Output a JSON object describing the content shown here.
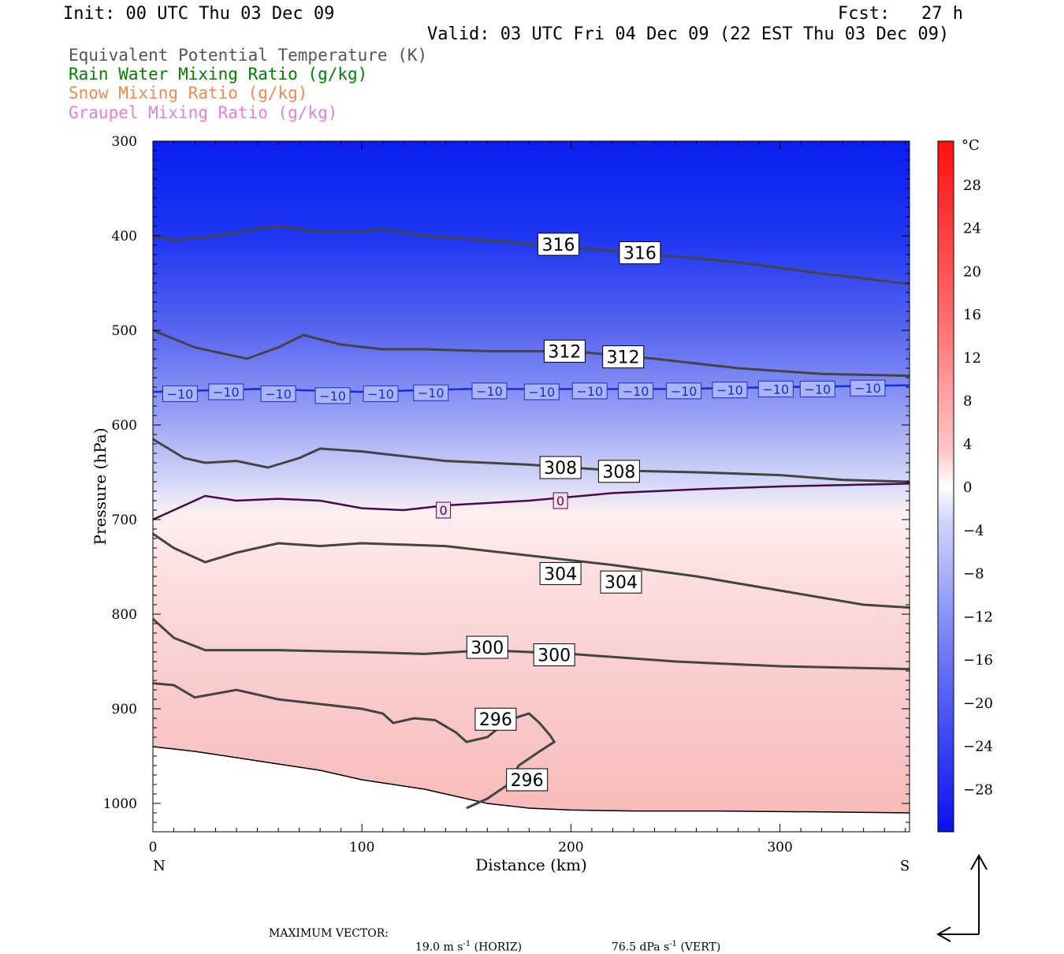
{
  "header": {
    "init": "Init: 00 UTC Thu 03 Dec 09",
    "fcst": "Fcst:   27 h",
    "valid": "Valid: 03 UTC Fri 04 Dec 09 (22 EST Thu 03 Dec 09)"
  },
  "legend": [
    {
      "label": "Equivalent Potential Temperature (K)",
      "color": "#555555"
    },
    {
      "label": "Rain Water Mixing Ratio (g/kg)",
      "color": "#008000"
    },
    {
      "label": "Snow Mixing Ratio (g/kg)",
      "color": "#f08a50"
    },
    {
      "label": "Graupel Mixing Ratio (g/kg)",
      "color": "#e080e0"
    }
  ],
  "footer": {
    "max_vector_label": "MAXIMUM VECTOR:",
    "horiz": "19.0 m s",
    "horiz_exp": "-1",
    "horiz_tag": "(HORIZ)",
    "vert": "76.5 dPa s",
    "vert_exp": "-1",
    "vert_tag": "(VERT)"
  },
  "chart_data": {
    "type": "cross-section",
    "xlabel": "Distance (km)",
    "ylabel": "Pressure (hPa)",
    "xlim": [
      0,
      362
    ],
    "ylim": [
      1030,
      300
    ],
    "x_ticks": [
      0,
      100,
      200,
      300
    ],
    "y_ticks": [
      300,
      400,
      500,
      600,
      700,
      800,
      900,
      1000
    ],
    "x_end_labels": {
      "left": "N",
      "right": "S"
    },
    "colorbar": {
      "unit": "°C",
      "range": [
        -32,
        32
      ],
      "labels": [
        28,
        24,
        20,
        16,
        12,
        8,
        4,
        0,
        -4,
        -8,
        -12,
        -16,
        -20,
        -24,
        -28
      ]
    },
    "theta_e_contours": [
      {
        "value": 316,
        "points": [
          [
            0,
            400
          ],
          [
            10,
            405
          ],
          [
            30,
            400
          ],
          [
            50,
            393
          ],
          [
            60,
            390
          ],
          [
            80,
            396
          ],
          [
            100,
            396
          ],
          [
            110,
            393
          ],
          [
            130,
            400
          ],
          [
            160,
            405
          ],
          [
            200,
            412
          ],
          [
            240,
            420
          ],
          [
            280,
            428
          ],
          [
            320,
            440
          ],
          [
            362,
            451
          ]
        ],
        "labels": [
          [
            194,
            409
          ],
          [
            233,
            418
          ]
        ]
      },
      {
        "value": 312,
        "points": [
          [
            0,
            500
          ],
          [
            20,
            518
          ],
          [
            45,
            530
          ],
          [
            60,
            518
          ],
          [
            72,
            505
          ],
          [
            90,
            515
          ],
          [
            110,
            520
          ],
          [
            130,
            520
          ],
          [
            160,
            522
          ],
          [
            200,
            522
          ],
          [
            240,
            530
          ],
          [
            280,
            540
          ],
          [
            320,
            546
          ],
          [
            362,
            548
          ]
        ],
        "labels": [
          [
            197,
            522
          ],
          [
            225,
            528
          ]
        ]
      },
      {
        "value": 308,
        "points": [
          [
            0,
            615
          ],
          [
            15,
            635
          ],
          [
            25,
            640
          ],
          [
            40,
            638
          ],
          [
            55,
            645
          ],
          [
            70,
            635
          ],
          [
            80,
            625
          ],
          [
            100,
            628
          ],
          [
            140,
            638
          ],
          [
            180,
            642
          ],
          [
            220,
            648
          ],
          [
            260,
            650
          ],
          [
            300,
            653
          ],
          [
            330,
            658
          ],
          [
            362,
            660
          ]
        ],
        "labels": [
          [
            195,
            645
          ],
          [
            223,
            649
          ]
        ]
      },
      {
        "value": 304,
        "points": [
          [
            0,
            715
          ],
          [
            10,
            730
          ],
          [
            25,
            745
          ],
          [
            40,
            735
          ],
          [
            60,
            725
          ],
          [
            80,
            728
          ],
          [
            100,
            725
          ],
          [
            140,
            728
          ],
          [
            180,
            738
          ],
          [
            220,
            748
          ],
          [
            260,
            760
          ],
          [
            300,
            775
          ],
          [
            340,
            790
          ],
          [
            362,
            793
          ]
        ],
        "labels": [
          [
            195,
            757
          ],
          [
            224,
            766
          ]
        ]
      },
      {
        "value": 300,
        "points": [
          [
            0,
            805
          ],
          [
            10,
            825
          ],
          [
            25,
            838
          ],
          [
            60,
            838
          ],
          [
            100,
            840
          ],
          [
            130,
            842
          ],
          [
            160,
            838
          ],
          [
            200,
            842
          ],
          [
            250,
            850
          ],
          [
            300,
            855
          ],
          [
            362,
            858
          ]
        ],
        "labels": [
          [
            160,
            835
          ],
          [
            192,
            843
          ]
        ]
      },
      {
        "value": 296,
        "points": [
          [
            0,
            873
          ],
          [
            10,
            875
          ],
          [
            20,
            888
          ],
          [
            40,
            880
          ],
          [
            60,
            890
          ],
          [
            80,
            895
          ],
          [
            100,
            900
          ],
          [
            110,
            905
          ],
          [
            115,
            915
          ],
          [
            125,
            910
          ],
          [
            135,
            912
          ],
          [
            145,
            925
          ],
          [
            150,
            935
          ],
          [
            160,
            930
          ],
          [
            170,
            912
          ],
          [
            180,
            905
          ],
          [
            185,
            915
          ],
          [
            190,
            928
          ],
          [
            192,
            935
          ],
          [
            185,
            945
          ],
          [
            175,
            960
          ],
          [
            170,
            980
          ],
          [
            160,
            995
          ],
          [
            150,
            1005
          ]
        ],
        "labels": [
          [
            164,
            911
          ],
          [
            179,
            975
          ]
        ]
      }
    ],
    "temperature_contours": [
      {
        "value": -10,
        "points": [
          [
            0,
            565
          ],
          [
            50,
            562
          ],
          [
            100,
            565
          ],
          [
            150,
            562
          ],
          [
            200,
            562
          ],
          [
            250,
            562
          ],
          [
            300,
            560
          ],
          [
            362,
            558
          ]
        ],
        "labels": [
          [
            13,
            567
          ],
          [
            35,
            565
          ],
          [
            60,
            567
          ],
          [
            86,
            569
          ],
          [
            109,
            567
          ],
          [
            133,
            566
          ],
          [
            161,
            564
          ],
          [
            186,
            565
          ],
          [
            209,
            564
          ],
          [
            231,
            564
          ],
          [
            254,
            564
          ],
          [
            276,
            563
          ],
          [
            298,
            562
          ],
          [
            318,
            562
          ],
          [
            342,
            561
          ]
        ]
      },
      {
        "value": 0,
        "points": [
          [
            0,
            700
          ],
          [
            15,
            685
          ],
          [
            25,
            675
          ],
          [
            40,
            680
          ],
          [
            60,
            678
          ],
          [
            80,
            680
          ],
          [
            100,
            688
          ],
          [
            120,
            690
          ],
          [
            140,
            685
          ],
          [
            180,
            680
          ],
          [
            220,
            672
          ],
          [
            260,
            668
          ],
          [
            300,
            665
          ],
          [
            362,
            662
          ]
        ],
        "labels": [
          [
            139,
            690
          ],
          [
            195,
            680
          ]
        ]
      }
    ],
    "surface_pressure": [
      [
        0,
        940
      ],
      [
        20,
        945
      ],
      [
        50,
        955
      ],
      [
        80,
        965
      ],
      [
        100,
        975
      ],
      [
        130,
        985
      ],
      [
        160,
        1000
      ],
      [
        180,
        1005
      ],
      [
        200,
        1007
      ],
      [
        230,
        1008
      ],
      [
        270,
        1008
      ],
      [
        320,
        1009
      ],
      [
        362,
        1010
      ]
    ]
  }
}
